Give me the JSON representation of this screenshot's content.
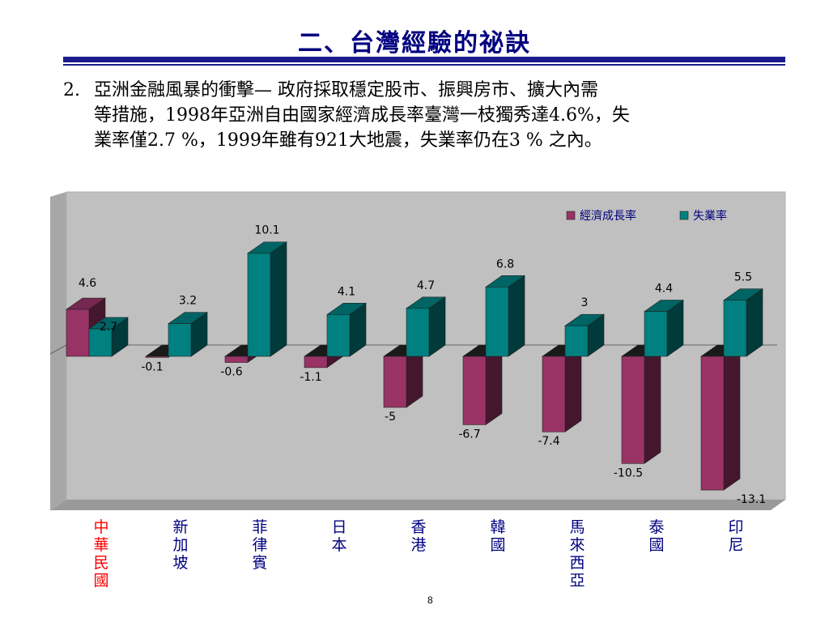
{
  "slide": {
    "title": "二、台灣經驗的祕訣",
    "point_number": "2.",
    "line1": "亞洲金融風暴的衝擊— 政府採取穩定股市、振興房市、擴大內需",
    "line2": "等措施，1998年亞洲自由國家經濟成長率臺灣一枝獨秀達4.6%，失",
    "line3": "業率僅2.7 %，1999年雖有921大地震，失業率仍在3 % 之內。",
    "page_number": "8",
    "title_color": "#000080",
    "highlight_category_color": "#ff0000"
  },
  "chart_data": {
    "type": "bar",
    "style": "3d",
    "categories": [
      "中華民國",
      "新加坡",
      "菲律賓",
      "日本",
      "香港",
      "韓國",
      "馬來西亞",
      "泰國",
      "印尼"
    ],
    "series": [
      {
        "name": "經濟成長率",
        "color": "#993366",
        "values": [
          4.6,
          -0.1,
          -0.6,
          -1.1,
          -5,
          -6.7,
          -7.4,
          -10.5,
          -13.1
        ],
        "labels": [
          "4.6",
          "-0.1",
          "-0.6",
          "-1.1",
          "-5",
          "-6.7",
          "-7.4",
          "-10.5",
          "-13.1"
        ]
      },
      {
        "name": "失業率",
        "color": "#008080",
        "values": [
          2.7,
          3.2,
          10.1,
          4.1,
          4.7,
          6.8,
          3,
          4.4,
          5.5
        ],
        "labels": [
          "2.7",
          "3.2",
          "10.1",
          "4.1",
          "4.7",
          "6.8",
          "3",
          "4.4",
          "5.5"
        ]
      }
    ],
    "legend": "top-right",
    "grid": false,
    "plot_background": "#c0c0c0"
  }
}
